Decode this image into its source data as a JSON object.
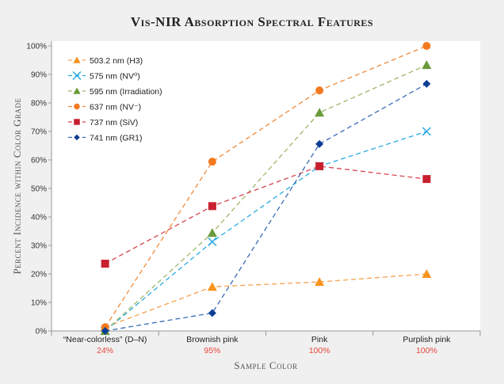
{
  "chart_data": {
    "type": "line",
    "title": "Vis-NIR Absorption Spectral Features",
    "xlabel": "Sample Color",
    "ylabel": "Percent Incidence within Color Grade",
    "categories": [
      "“Near-colorless” (D–N)",
      "Brownish pink",
      "Pink",
      "Purplish pink"
    ],
    "category_sublabels": [
      "24%",
      "95%",
      "100%",
      "100%"
    ],
    "sublabel_color": "#e8453c",
    "ylim": [
      0,
      100
    ],
    "yticks": [
      "0%",
      "10%",
      "20%",
      "30%",
      "40%",
      "50%",
      "60%",
      "70%",
      "80%",
      "90%",
      "100%"
    ],
    "grid": false,
    "legend_position": "top-left",
    "series": [
      {
        "name": "503.2 nm (H3)",
        "marker": "triangle",
        "color": "#f7941d",
        "line_color": "#f7a04a",
        "values": [
          1.3,
          15.5,
          17.2,
          20.0
        ]
      },
      {
        "name": "575 nm (NV⁰)",
        "marker": "x",
        "color": "#29abe2",
        "line_color": "#29abe2",
        "values": [
          0,
          31.3,
          57.8,
          70.0
        ]
      },
      {
        "name": "595 nm (Irradiation)",
        "marker": "triangle",
        "color": "#6a9a3a",
        "line_color": "#9bb86a",
        "values": [
          0,
          34.4,
          76.6,
          93.3
        ]
      },
      {
        "name": "637 nm (NV⁻)",
        "marker": "circle",
        "color": "#f37a1f",
        "line_color": "#f08a3a",
        "values": [
          1.3,
          59.4,
          84.4,
          100.0
        ]
      },
      {
        "name": "737 nm (SiV)",
        "marker": "square",
        "color": "#c8202e",
        "line_color": "#d64550",
        "values": [
          23.6,
          43.8,
          57.8,
          53.3
        ]
      },
      {
        "name": "741 nm (GR1)",
        "marker": "diamond",
        "color": "#0b3f94",
        "line_color": "#3a6bb8",
        "values": [
          0,
          6.3,
          65.6,
          86.7
        ]
      }
    ]
  }
}
